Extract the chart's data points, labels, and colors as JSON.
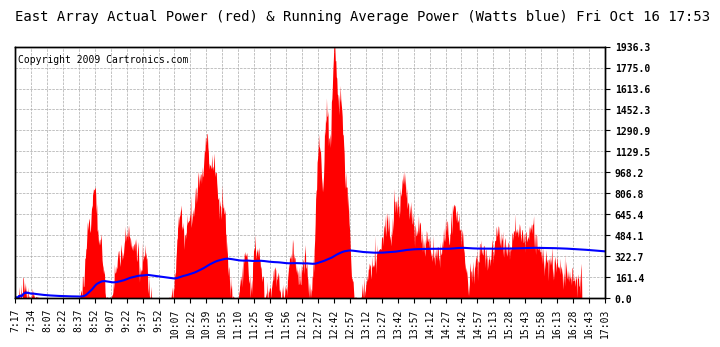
{
  "title": "East Array Actual Power (red) & Running Average Power (Watts blue) Fri Oct 16 17:53",
  "copyright": "Copyright 2009 Cartronics.com",
  "ylabel_right": [
    "1936.3",
    "1775.0",
    "1613.6",
    "1452.3",
    "1290.9",
    "1129.5",
    "968.2",
    "806.8",
    "645.4",
    "484.1",
    "322.7",
    "161.4",
    "0.0"
  ],
  "ymax": 1936.3,
  "ymin": 0.0,
  "yticks": [
    1936.3,
    1775.0,
    1613.6,
    1452.3,
    1290.9,
    1129.5,
    968.2,
    806.8,
    645.4,
    484.1,
    322.7,
    161.4,
    0.0
  ],
  "xtick_labels": [
    "7:17",
    "7:34",
    "8:07",
    "8:22",
    "8:37",
    "8:52",
    "9:07",
    "9:22",
    "9:37",
    "9:52",
    "10:07",
    "10:22",
    "10:39",
    "10:55",
    "11:10",
    "11:25",
    "11:40",
    "11:56",
    "12:12",
    "12:27",
    "12:42",
    "12:57",
    "13:12",
    "13:27",
    "13:42",
    "13:57",
    "14:12",
    "14:27",
    "14:42",
    "14:57",
    "15:13",
    "15:28",
    "15:43",
    "15:58",
    "16:13",
    "16:28",
    "16:43",
    "17:03"
  ],
  "background_color": "#ffffff",
  "fill_color": "#ff0000",
  "line_color": "#0000ff",
  "grid_color": "#aaaaaa",
  "title_fontsize": 10,
  "copyright_fontsize": 7,
  "tick_fontsize": 7
}
